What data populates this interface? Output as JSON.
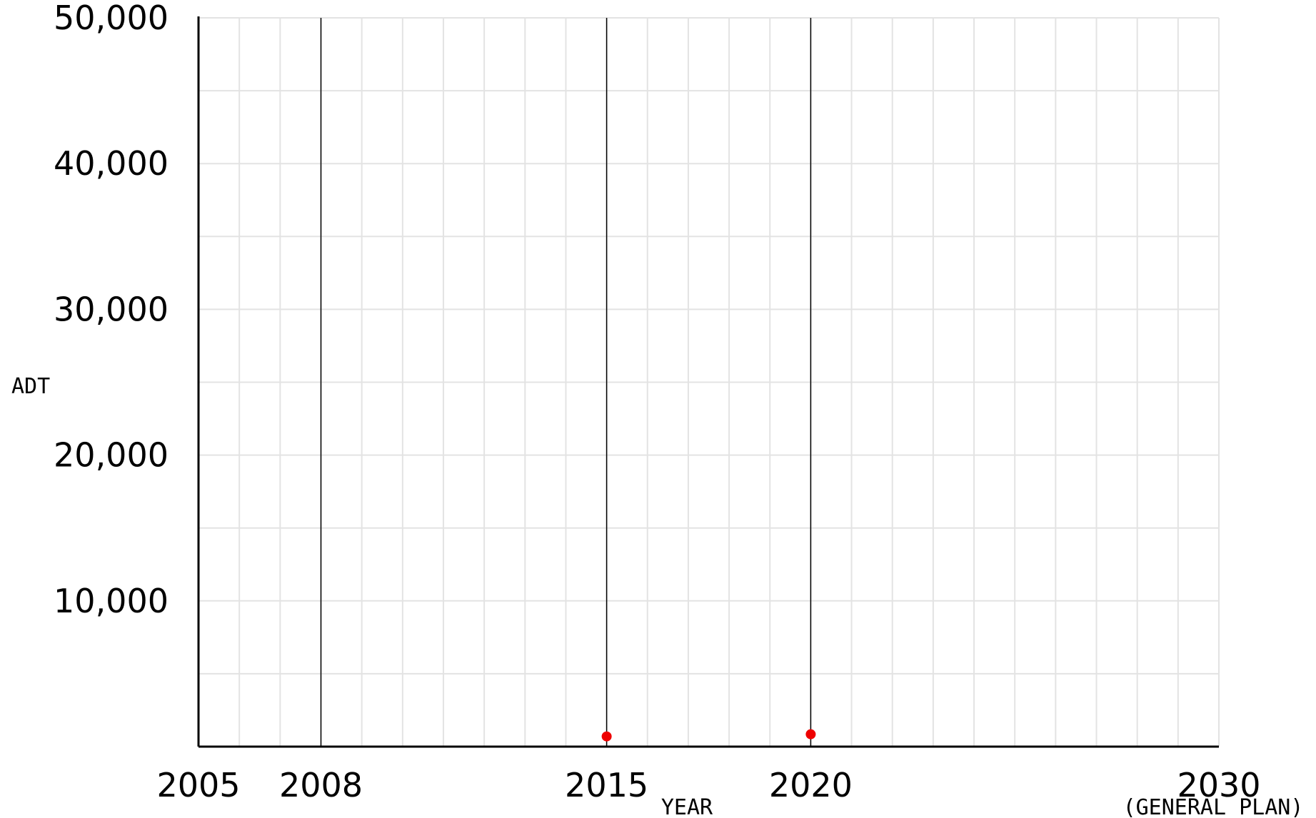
{
  "chart_data": {
    "type": "scatter",
    "title": "",
    "xlabel": "YEAR",
    "ylabel": "ADT",
    "xlim": [
      2005,
      2030
    ],
    "ylim": [
      0,
      50000
    ],
    "x_ticks": [
      {
        "value": 2005,
        "label": "2005"
      },
      {
        "value": 2008,
        "label": "2008"
      },
      {
        "value": 2015,
        "label": "2015"
      },
      {
        "value": 2020,
        "label": "2020"
      },
      {
        "value": 2030,
        "label": "2030"
      }
    ],
    "x_tick_sublabel": {
      "value": 2030,
      "label": "(GENERAL PLAN)"
    },
    "y_ticks": [
      {
        "value": 10000,
        "label": "10,000"
      },
      {
        "value": 20000,
        "label": "20,000"
      },
      {
        "value": 30000,
        "label": "30,000"
      },
      {
        "value": 40000,
        "label": "40,000"
      },
      {
        "value": 50000,
        "label": "50,000"
      }
    ],
    "x_minor_step": 1,
    "y_minor_step": 5000,
    "major_vertical_lines": [
      2008,
      2015,
      2020
    ],
    "grid": true,
    "series": [
      {
        "color": "#ee0000",
        "points": [
          {
            "x": 2015,
            "y": 700
          },
          {
            "x": 2020,
            "y": 850
          }
        ]
      }
    ]
  }
}
